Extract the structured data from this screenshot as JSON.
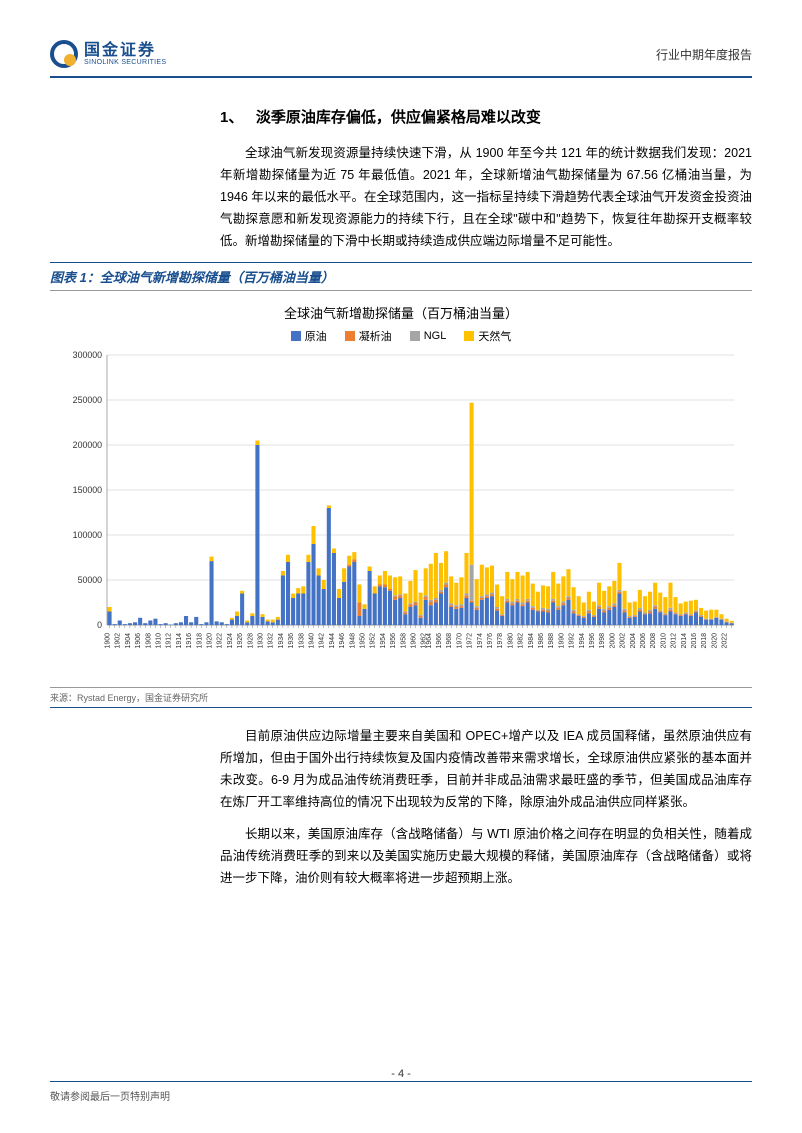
{
  "header": {
    "logo_cn": "国金证券",
    "logo_en": "SINOLINK SECURITIES",
    "right": "行业中期年度报告"
  },
  "section": {
    "num": "1、",
    "title": "淡季原油库存偏低，供应偏紧格局难以改变"
  },
  "para1": "全球油气新发现资源量持续快速下滑，从 1900 年至今共 121 年的统计数据我们发现：2021 年新增勘探储量为近 75 年最低值。2021 年，全球新增油气勘探储量为 67.56 亿桶油当量，为 1946 年以来的最低水平。在全球范围内，这一指标呈持续下滑趋势代表全球油气开发资金投资油气勘探意愿和新发现资源能力的持续下行，且在全球\"碳中和\"趋势下，恢复往年勘探开支概率较低。新增勘探储量的下滑中长期或持续造成供应端边际增量不足可能性。",
  "chart": {
    "caption": "图表 1：全球油气新增勘探储量（百万桶油当量）",
    "title": "全球油气新增勘探储量（百万桶油当量）",
    "legend": {
      "crude": "原油",
      "condensate": "凝析油",
      "ngl": "NGL",
      "gas": "天然气"
    },
    "colors": {
      "crude": "#4472c4",
      "condensate": "#ed7d31",
      "ngl": "#a5a5a5",
      "gas": "#ffc000",
      "grid": "#d9d9d9",
      "axis": "#808080"
    },
    "ylim": [
      0,
      300000
    ],
    "ytick_step": 50000,
    "yticks": [
      "0",
      "50000",
      "100000",
      "150000",
      "200000",
      "250000",
      "300000"
    ],
    "x_start": 1900,
    "x_end": 2022,
    "x_step": 2,
    "xlabels": [
      "1900",
      "1902",
      "1904",
      "1906",
      "1908",
      "1910",
      "1912",
      "1914",
      "1916",
      "1918",
      "1920",
      "1922",
      "1924",
      "1926",
      "1928",
      "1930",
      "1932",
      "1934",
      "1936",
      "1938",
      "1940",
      "1942",
      "1944",
      "1946",
      "1948",
      "1950",
      "1952",
      "1954",
      "1956",
      "1958",
      "1960",
      "1962",
      "1964",
      "1966",
      "1968",
      "1970",
      "1972",
      "1974",
      "1976",
      "1978",
      "1980",
      "1982",
      "1984",
      "1986",
      "1988",
      "1990",
      "1992",
      "1994",
      "1996",
      "1998",
      "2000",
      "2002",
      "2004",
      "2006",
      "2008",
      "2010",
      "2012",
      "2014",
      "2016",
      "2018",
      "2020",
      "2022"
    ],
    "series": {
      "crude": [
        15000,
        1000,
        5000,
        1000,
        2000,
        3000,
        8000,
        2000,
        5000,
        7000,
        1000,
        2000,
        500,
        2000,
        3000,
        10000,
        3000,
        9000,
        1000,
        3000,
        71000,
        4000,
        3000,
        1000,
        6000,
        10000,
        35000,
        3000,
        10000,
        200000,
        9000,
        4000,
        3000,
        6000,
        55000,
        70000,
        30000,
        35000,
        35000,
        70000,
        90000,
        55000,
        40000,
        130000,
        80000,
        30000,
        48000,
        65000,
        70000,
        10000,
        18000,
        60000,
        35000,
        43000,
        42000,
        38000,
        28000,
        30000,
        12000,
        20000,
        22000,
        8000,
        28000,
        22000,
        25000,
        35000,
        42000,
        20000,
        18000,
        19000,
        30000,
        25000,
        17000,
        28000,
        30000,
        32000,
        16000,
        10000,
        25000,
        22000,
        25000,
        21000,
        25000,
        17000,
        15000,
        15000,
        14000,
        25000,
        17000,
        22000,
        28000,
        13000,
        10000,
        8000,
        13000,
        9000,
        18000,
        14000,
        17000,
        20000,
        35000,
        14000,
        8000,
        9000,
        15000,
        12000,
        13000,
        18000,
        14000,
        11000,
        15000,
        12000,
        10000,
        12000,
        10000,
        14000,
        9000,
        6000,
        6000,
        8000,
        6000,
        3000,
        2000
      ],
      "condensate": [
        0,
        0,
        0,
        0,
        0,
        0,
        0,
        0,
        0,
        0,
        0,
        0,
        0,
        0,
        0,
        0,
        0,
        0,
        0,
        0,
        0,
        0,
        0,
        0,
        0,
        0,
        0,
        0,
        0,
        0,
        0,
        0,
        0,
        0,
        0,
        0,
        0,
        0,
        0,
        0,
        0,
        0,
        0,
        0,
        0,
        0,
        0,
        2000,
        3000,
        15000,
        0,
        0,
        0,
        2000,
        3000,
        2000,
        4000,
        3000,
        2000,
        3000,
        3000,
        2000,
        3000,
        4000,
        3000,
        2000,
        3000,
        2000,
        2000,
        2000,
        3000,
        2000,
        2000,
        2000,
        2000,
        2000,
        2000,
        1000,
        2000,
        2000,
        2000,
        2000,
        2000,
        2000,
        1000,
        2000,
        2000,
        2000,
        2000,
        2000,
        2000,
        2000,
        1000,
        1000,
        2000,
        1000,
        2000,
        2000,
        2000,
        2000,
        2000,
        2000,
        1000,
        1000,
        2000,
        1000,
        2000,
        2000,
        1000,
        1000,
        2000,
        1000,
        1000,
        1000,
        1000,
        1000,
        1000,
        500,
        500,
        500,
        500,
        500,
        300
      ],
      "ngl": [
        0,
        0,
        0,
        0,
        0,
        0,
        0,
        0,
        0,
        0,
        0,
        0,
        0,
        0,
        0,
        0,
        0,
        0,
        0,
        0,
        0,
        0,
        0,
        0,
        0,
        0,
        0,
        0,
        0,
        0,
        0,
        0,
        0,
        0,
        0,
        0,
        0,
        0,
        0,
        0,
        0,
        0,
        0,
        0,
        0,
        0,
        0,
        0,
        0,
        0,
        0,
        0,
        0,
        0,
        0,
        0,
        1000,
        1000,
        1000,
        1000,
        1000,
        1000,
        2000,
        2000,
        2000,
        2000,
        2000,
        2000,
        2000,
        2000,
        2000,
        40000,
        2000,
        2000,
        2000,
        2000,
        2000,
        1000,
        2000,
        2000,
        2000,
        2000,
        2000,
        2000,
        1000,
        2000,
        2000,
        2000,
        2000,
        2000,
        2000,
        2000,
        1000,
        1000,
        2000,
        1000,
        2000,
        2000,
        2000,
        2000,
        2000,
        2000,
        1000,
        1000,
        2000,
        1000,
        2000,
        2000,
        1000,
        1000,
        2000,
        1000,
        1000,
        1000,
        1000,
        1000,
        1000,
        500,
        500,
        500,
        500,
        500,
        300
      ],
      "gas": [
        5000,
        0,
        0,
        0,
        0,
        0,
        0,
        0,
        0,
        0,
        0,
        0,
        0,
        0,
        0,
        0,
        0,
        0,
        0,
        0,
        5000,
        0,
        0,
        0,
        2000,
        5000,
        3000,
        2000,
        3000,
        5000,
        3000,
        2000,
        3000,
        3000,
        5000,
        8000,
        5000,
        6000,
        8000,
        8000,
        20000,
        8000,
        10000,
        3000,
        5000,
        10000,
        15000,
        10000,
        8000,
        20000,
        5000,
        5000,
        8000,
        10000,
        15000,
        15000,
        20000,
        20000,
        20000,
        25000,
        35000,
        25000,
        30000,
        40000,
        50000,
        30000,
        35000,
        30000,
        25000,
        30000,
        45000,
        180000,
        30000,
        35000,
        30000,
        30000,
        25000,
        20000,
        30000,
        25000,
        30000,
        30000,
        30000,
        25000,
        20000,
        25000,
        25000,
        30000,
        25000,
        28000,
        30000,
        25000,
        20000,
        15000,
        20000,
        15000,
        25000,
        20000,
        22000,
        25000,
        30000,
        20000,
        15000,
        15000,
        20000,
        18000,
        20000,
        25000,
        20000,
        18000,
        28000,
        17000,
        12000,
        12000,
        15000,
        12000,
        8000,
        9000,
        10000,
        8000,
        5000,
        3000,
        2000
      ]
    },
    "source": "来源：Rystad Energy，国金证券研究所"
  },
  "para2": "目前原油供应边际增量主要来自美国和 OPEC+增产以及 IEA 成员国释储，虽然原油供应有所增加，但由于国外出行持续恢复及国内疫情改善带来需求增长，全球原油供应紧张的基本面并未改变。6-9 月为成品油传统消费旺季，目前并非成品油需求最旺盛的季节，但美国成品油库存在炼厂开工率维持高位的情况下出现较为反常的下降，除原油外成品油供应同样紧张。",
  "para3": "长期以来，美国原油库存（含战略储备）与 WTI 原油价格之间存在明显的负相关性，随着成品油传统消费旺季的到来以及美国实施历史最大规模的释储，美国原油库存（含战略储备）或将进一步下降，油价则有较大概率将进一步超预期上涨。",
  "footer": {
    "left": "敬请参阅最后一页特别声明",
    "page": "- 4 -"
  }
}
